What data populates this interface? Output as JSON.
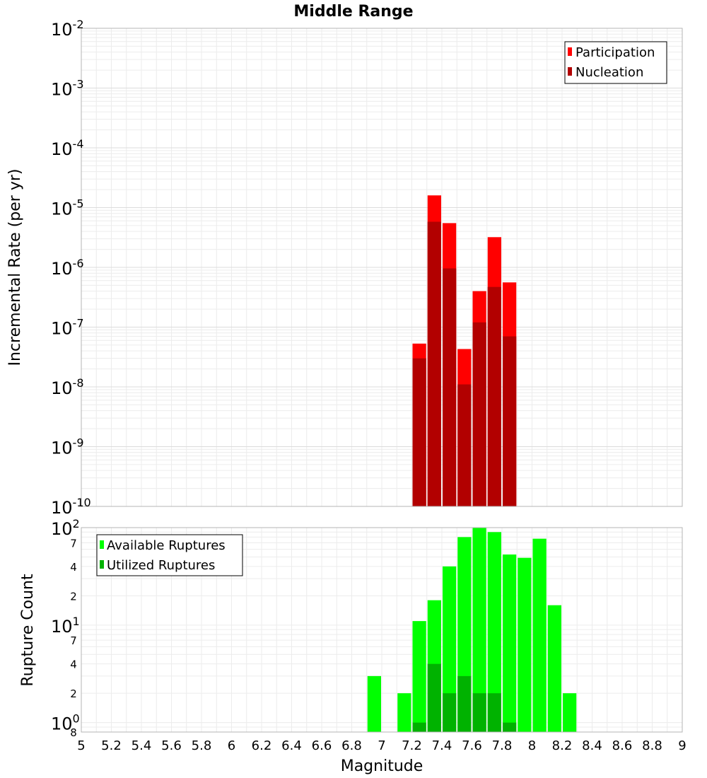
{
  "chart_data": [
    {
      "type": "bar",
      "title": "Middle Range",
      "ylabel": "Incremental Rate (per yr)",
      "xlabel": "",
      "y_scale": "log",
      "ylim": [
        1e-10,
        0.01
      ],
      "xlim": [
        5,
        9
      ],
      "legend_position": "top-right",
      "y_tick_exponents": [
        "-10",
        "-9",
        "-8",
        "-7",
        "-6",
        "-5",
        "-4",
        "-3",
        "-2"
      ],
      "y_tick_base": "10",
      "bin_width": 0.1,
      "series": [
        {
          "name": "Participation",
          "color": "#ff0000",
          "x": [
            7.25,
            7.35,
            7.45,
            7.55,
            7.65,
            7.75,
            7.85
          ],
          "values": [
            5.3e-08,
            1.6e-05,
            5.5e-06,
            4.3e-08,
            4e-07,
            3.2e-06,
            5.6e-07
          ]
        },
        {
          "name": "Nucleation",
          "color": "#b20000",
          "x": [
            7.25,
            7.35,
            7.45,
            7.55,
            7.65,
            7.75,
            7.85
          ],
          "values": [
            3e-08,
            5.8e-06,
            9.6e-07,
            1.1e-08,
            1.2e-07,
            4.7e-07,
            7e-08
          ]
        }
      ]
    },
    {
      "type": "bar",
      "title": "",
      "ylabel": "Rupture Count",
      "xlabel": "Magnitude",
      "y_scale": "log",
      "ylim": [
        0.8,
        100
      ],
      "xlim": [
        5,
        9
      ],
      "legend_position": "top-left",
      "x_ticks": [
        "5",
        "5.2",
        "5.4",
        "5.6",
        "5.8",
        "6",
        "6.2",
        "6.4",
        "6.6",
        "6.8",
        "7",
        "7.2",
        "7.4",
        "7.6",
        "7.8",
        "8",
        "8.2",
        "8.4",
        "8.6",
        "8.8",
        "9"
      ],
      "y_major_ticks": [
        {
          "value": 1,
          "base": "10",
          "exp": "0"
        },
        {
          "value": 10,
          "base": "10",
          "exp": "1"
        },
        {
          "value": 100,
          "base": "10",
          "exp": "2"
        }
      ],
      "y_minor_ticks": [
        {
          "value": 0.8,
          "label": "8"
        },
        {
          "value": 2,
          "label": "2"
        },
        {
          "value": 4,
          "label": "4"
        },
        {
          "value": 7,
          "label": "7"
        },
        {
          "value": 20,
          "label": "2"
        },
        {
          "value": 40,
          "label": "4"
        },
        {
          "value": 70,
          "label": "7"
        }
      ],
      "bin_width": 0.1,
      "series": [
        {
          "name": "Available Ruptures",
          "color": "#00ff00",
          "x": [
            6.95,
            7.15,
            7.25,
            7.35,
            7.45,
            7.55,
            7.65,
            7.75,
            7.85,
            7.95,
            8.05,
            8.15,
            8.25
          ],
          "values": [
            3,
            2,
            11,
            18,
            40,
            80,
            100,
            90,
            53,
            49,
            77,
            16,
            2
          ]
        },
        {
          "name": "Utilized Ruptures",
          "color": "#00b200",
          "x": [
            7.25,
            7.35,
            7.45,
            7.55,
            7.65,
            7.75,
            7.85
          ],
          "values": [
            1,
            4,
            2,
            3,
            2,
            2,
            1
          ]
        }
      ]
    }
  ]
}
